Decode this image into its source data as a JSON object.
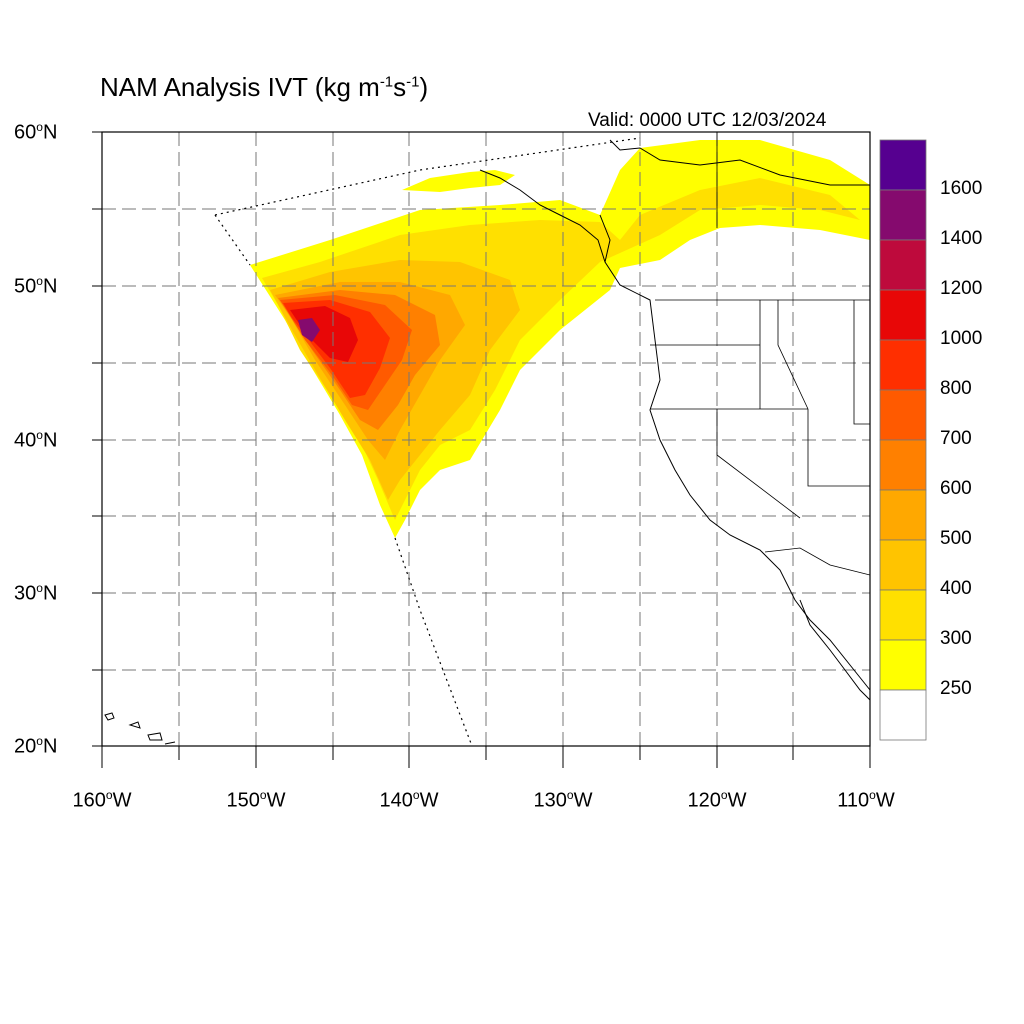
{
  "title": {
    "main": "NAM Analysis IVT (kg m",
    "sup1": "-1",
    "mid": "s",
    "sup2": "-1",
    "end": ")"
  },
  "valid": "Valid: 0000 UTC 12/03/2024",
  "axes": {
    "lat_labels": [
      "60",
      "50",
      "40",
      "30",
      "20"
    ],
    "lat_suffix": "N",
    "lon_labels": [
      "160",
      "150",
      "140",
      "130",
      "120",
      "110"
    ],
    "lon_suffix": "W",
    "lat_range": [
      20,
      60
    ],
    "lon_range": [
      -160,
      -110
    ]
  },
  "colorbar": {
    "labels": [
      "1600",
      "1400",
      "1200",
      "1000",
      "800",
      "700",
      "600",
      "500",
      "400",
      "300",
      "250"
    ],
    "colors": [
      "#560090",
      "#850a6e",
      "#be0a3c",
      "#e80707",
      "#ff2f00",
      "#ff5a00",
      "#ff8000",
      "#ffa800",
      "#ffc400",
      "#ffe000",
      "#ffff00",
      "#ffffff"
    ]
  },
  "field_colors": {
    "yellow": "#ffff00",
    "yellow_orange": "#ffe000",
    "orange_light": "#ffc400",
    "orange": "#ffa800",
    "orange_dark": "#ff8000",
    "red_orange": "#ff5a00",
    "red": "#ff2f00",
    "deep_red": "#e80707",
    "purple": "#850a6e"
  }
}
